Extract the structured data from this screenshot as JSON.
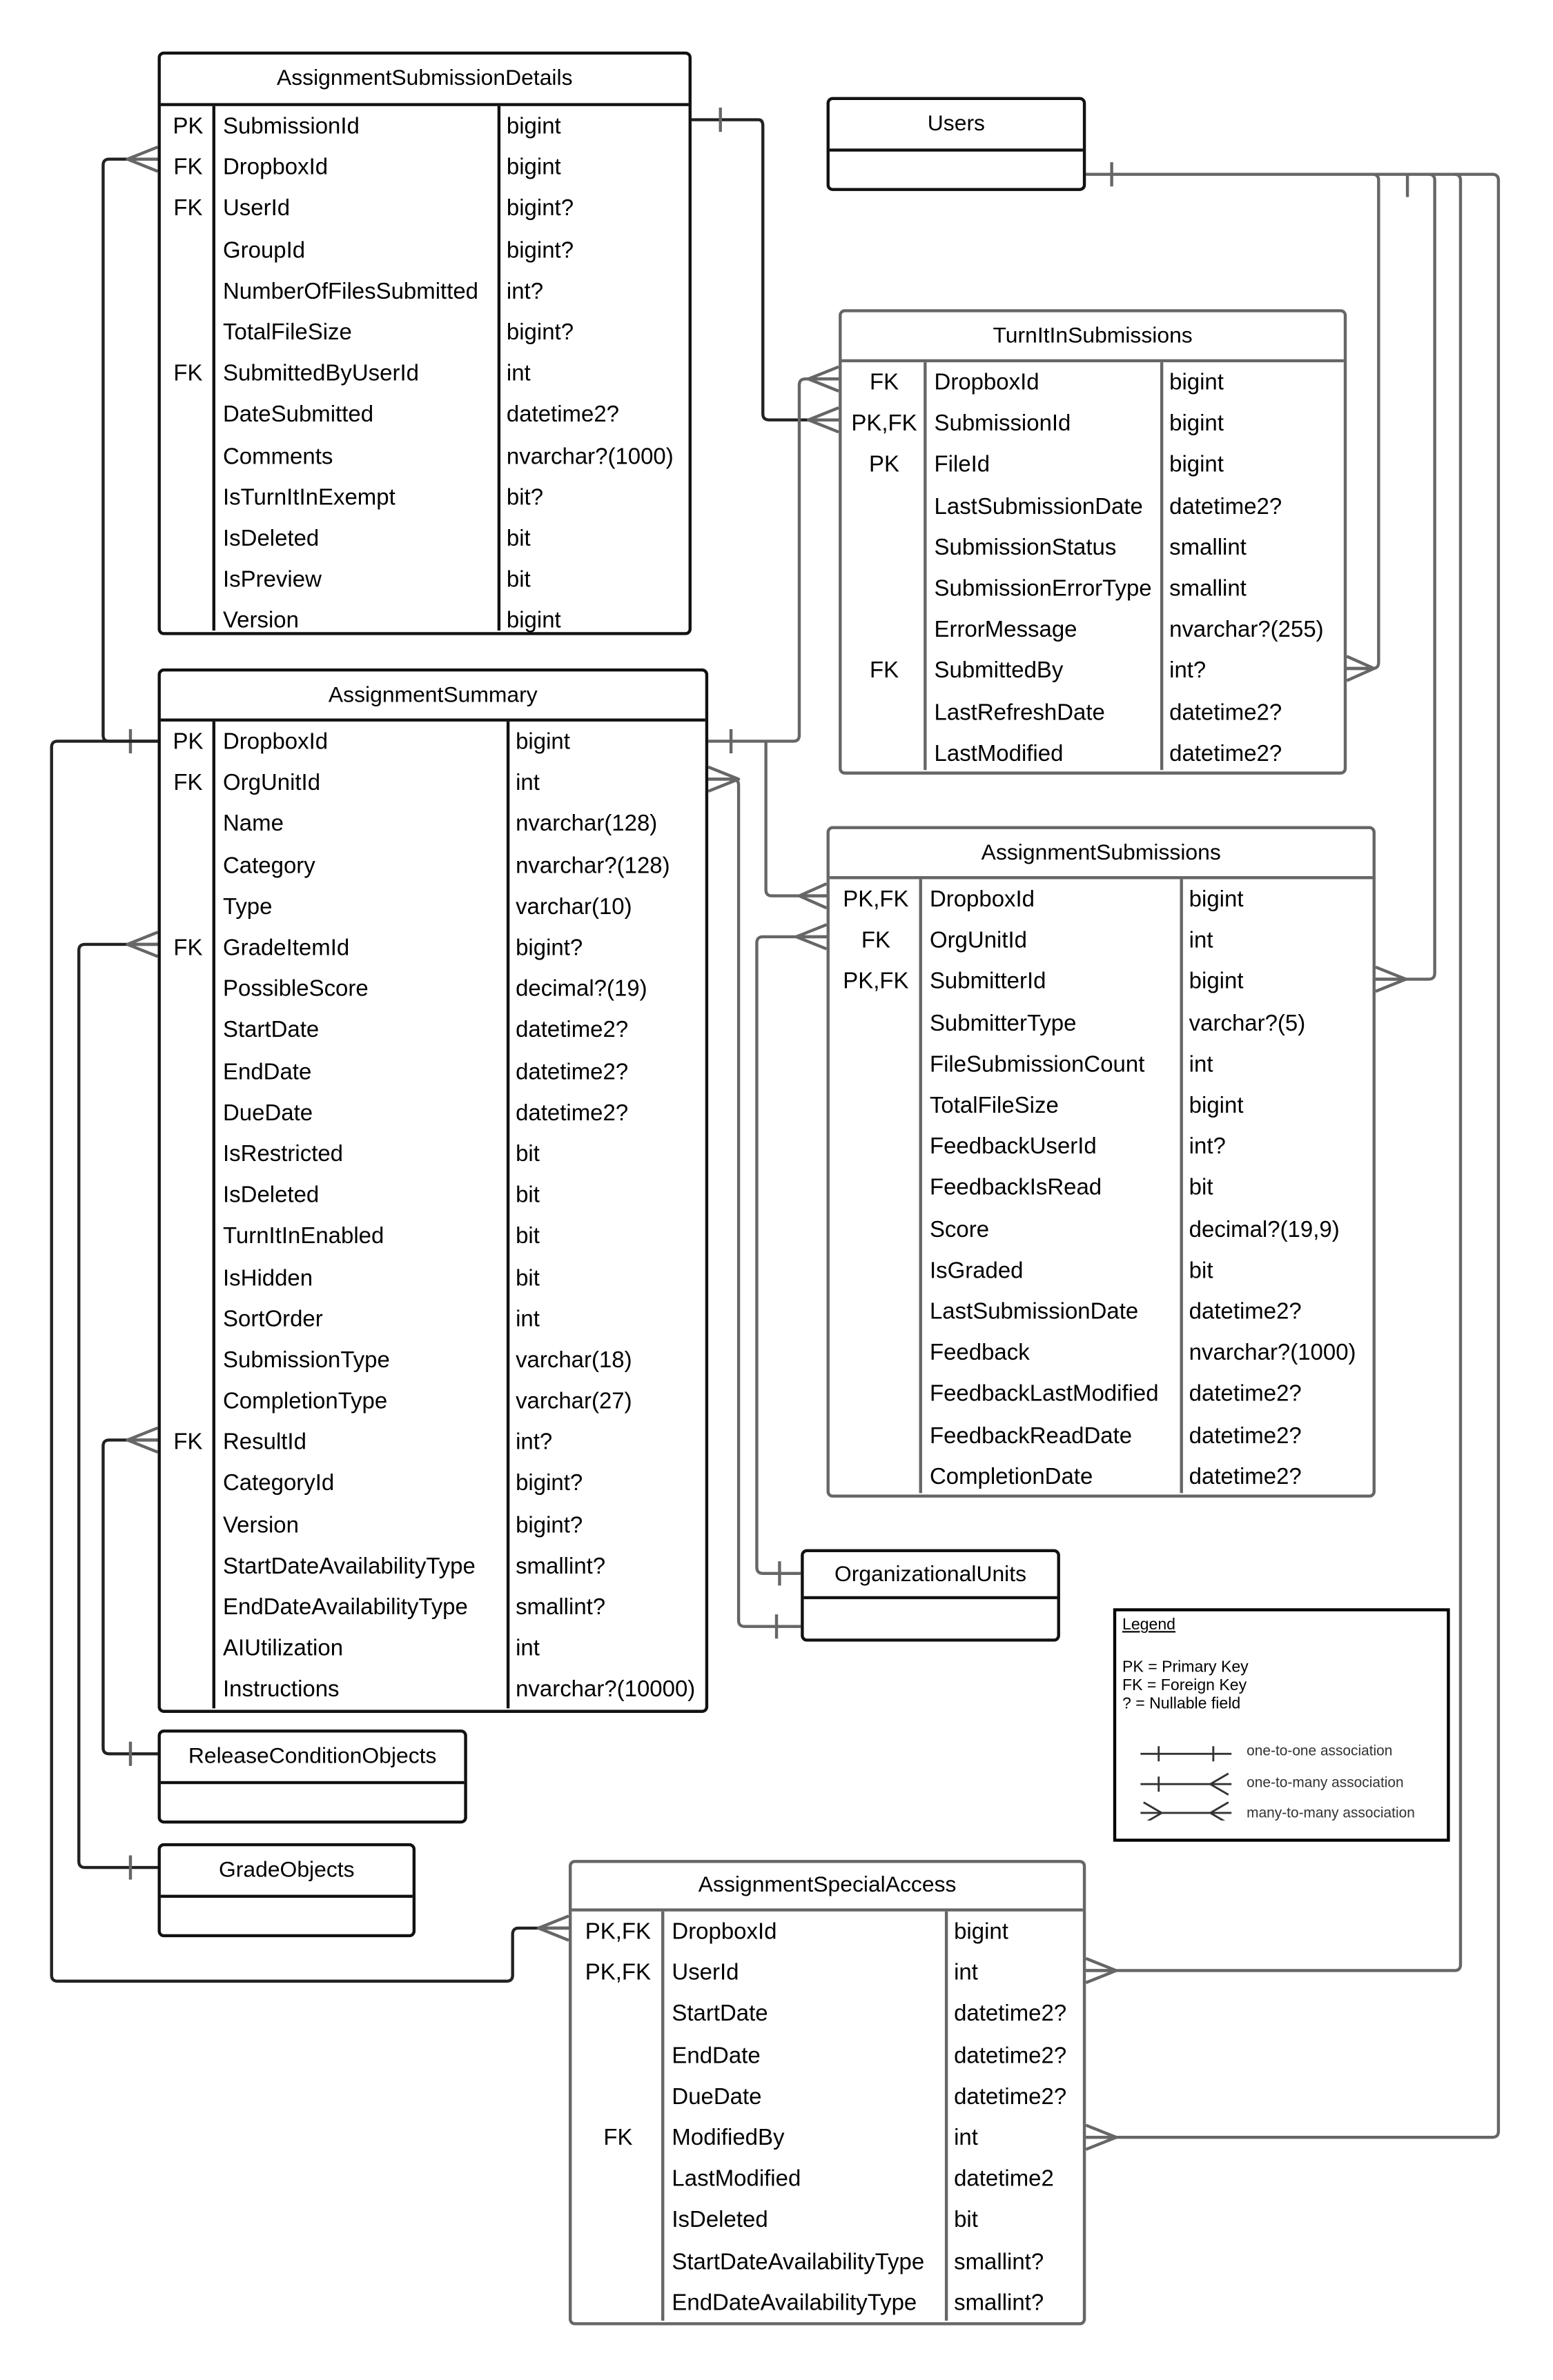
{
  "colors": {
    "line": "#666666",
    "border": "#111111"
  },
  "tables": [
    {
      "id": "assignment-submission-details",
      "title": "AssignmentSubmissionDetails",
      "style": "black",
      "rows": [
        [
          "PK",
          "SubmissionId",
          "bigint"
        ],
        [
          "FK",
          "DropboxId",
          "bigint"
        ],
        [
          "FK",
          "UserId",
          "bigint?"
        ],
        [
          "",
          "GroupId",
          "bigint?"
        ],
        [
          "",
          "NumberOfFilesSubmitted",
          "int?"
        ],
        [
          "",
          "TotalFileSize",
          "bigint?"
        ],
        [
          "FK",
          "SubmittedByUserId",
          "int"
        ],
        [
          "",
          "DateSubmitted",
          "datetime2?"
        ],
        [
          "",
          "Comments",
          "nvarchar?(1000)"
        ],
        [
          "",
          "IsTurnItInExempt",
          "bit?"
        ],
        [
          "",
          "IsDeleted",
          "bit"
        ],
        [
          "",
          "IsPreview",
          "bit"
        ],
        [
          "",
          "Version",
          "bigint"
        ]
      ]
    },
    {
      "id": "users",
      "title": "Users",
      "style": "black",
      "rows": []
    },
    {
      "id": "turnitin-submissions",
      "title": "TurnItInSubmissions",
      "style": "gray",
      "rows": [
        [
          "FK",
          "DropboxId",
          "bigint"
        ],
        [
          "PK,FK",
          "SubmissionId",
          "bigint"
        ],
        [
          "PK",
          "FileId",
          "bigint"
        ],
        [
          "",
          "LastSubmissionDate",
          "datetime2?"
        ],
        [
          "",
          "SubmissionStatus",
          "smallint"
        ],
        [
          "",
          "SubmissionErrorType",
          "smallint"
        ],
        [
          "",
          "ErrorMessage",
          "nvarchar?(255)"
        ],
        [
          "FK",
          "SubmittedBy",
          "int?"
        ],
        [
          "",
          "LastRefreshDate",
          "datetime2?"
        ],
        [
          "",
          "LastModified",
          "datetime2?"
        ]
      ]
    },
    {
      "id": "assignment-summary",
      "title": "AssignmentSummary",
      "style": "black",
      "rows": [
        [
          "PK",
          "DropboxId",
          "bigint"
        ],
        [
          "FK",
          "OrgUnitId",
          "int"
        ],
        [
          "",
          "Name",
          "nvarchar(128)"
        ],
        [
          "",
          "Category",
          "nvarchar?(128)"
        ],
        [
          "",
          "Type",
          "varchar(10)"
        ],
        [
          "FK",
          "GradeItemId",
          "bigint?"
        ],
        [
          "",
          "PossibleScore",
          "decimal?(19)"
        ],
        [
          "",
          "StartDate",
          "datetime2?"
        ],
        [
          "",
          "EndDate",
          "datetime2?"
        ],
        [
          "",
          "DueDate",
          "datetime2?"
        ],
        [
          "",
          "IsRestricted",
          "bit"
        ],
        [
          "",
          "IsDeleted",
          "bit"
        ],
        [
          "",
          "TurnItInEnabled",
          "bit"
        ],
        [
          "",
          "IsHidden",
          "bit"
        ],
        [
          "",
          "SortOrder",
          "int"
        ],
        [
          "",
          "SubmissionType",
          "varchar(18)"
        ],
        [
          "",
          "CompletionType",
          "varchar(27)"
        ],
        [
          "FK",
          "ResultId",
          "int?"
        ],
        [
          "",
          "CategoryId",
          "bigint?"
        ],
        [
          "",
          "Version",
          "bigint?"
        ],
        [
          "",
          "StartDateAvailabilityType",
          "smallint?"
        ],
        [
          "",
          "EndDateAvailabilityType",
          "smallint?"
        ],
        [
          "",
          "AIUtilization",
          "int"
        ],
        [
          "",
          "Instructions",
          "nvarchar?(10000)"
        ]
      ]
    },
    {
      "id": "assignment-submissions",
      "title": "AssignmentSubmissions",
      "style": "gray",
      "rows": [
        [
          "PK,FK",
          "DropboxId",
          "bigint"
        ],
        [
          "FK",
          "OrgUnitId",
          "int"
        ],
        [
          "PK,FK",
          "SubmitterId",
          "bigint"
        ],
        [
          "",
          "SubmitterType",
          "varchar?(5)"
        ],
        [
          "",
          "FileSubmissionCount",
          "int"
        ],
        [
          "",
          "TotalFileSize",
          "bigint"
        ],
        [
          "",
          "FeedbackUserId",
          "int?"
        ],
        [
          "",
          "FeedbackIsRead",
          "bit"
        ],
        [
          "",
          "Score",
          "decimal?(19,9)"
        ],
        [
          "",
          "IsGraded",
          "bit"
        ],
        [
          "",
          "LastSubmissionDate",
          "datetime2?"
        ],
        [
          "",
          "Feedback",
          "nvarchar?(1000)"
        ],
        [
          "",
          "FeedbackLastModified",
          "datetime2?"
        ],
        [
          "",
          "FeedbackReadDate",
          "datetime2?"
        ],
        [
          "",
          "CompletionDate",
          "datetime2?"
        ]
      ]
    },
    {
      "id": "organizational-units",
      "title": "OrganizationalUnits",
      "style": "black",
      "rows": []
    },
    {
      "id": "release-condition-objects",
      "title": "ReleaseConditionObjects",
      "style": "black",
      "rows": []
    },
    {
      "id": "grade-objects",
      "title": "GradeObjects",
      "style": "black",
      "rows": []
    },
    {
      "id": "assignment-special-access",
      "title": "AssignmentSpecialAccess",
      "style": "gray",
      "rows": [
        [
          "PK,FK",
          "DropboxId",
          "bigint"
        ],
        [
          "PK,FK",
          "UserId",
          "int"
        ],
        [
          "",
          "StartDate",
          "datetime2?"
        ],
        [
          "",
          "EndDate",
          "datetime2?"
        ],
        [
          "",
          "DueDate",
          "datetime2?"
        ],
        [
          "FK",
          "ModifiedBy",
          "int"
        ],
        [
          "",
          "LastModified",
          "datetime2"
        ],
        [
          "",
          "IsDeleted",
          "bit"
        ],
        [
          "",
          "StartDateAvailabilityType",
          "smallint?"
        ],
        [
          "",
          "EndDateAvailabilityType",
          "smallint?"
        ]
      ]
    }
  ],
  "legend": {
    "title": "Legend",
    "lines": [
      "PK = Primary Key",
      "FK = Foreign Key",
      "? = Nullable field"
    ],
    "symbols": [
      {
        "label": "one-to-one association",
        "icon": "one-to-one-icon"
      },
      {
        "label": "one-to-many association",
        "icon": "one-to-many-icon"
      },
      {
        "label": "many-to-many association",
        "icon": "many-to-many-icon"
      }
    ]
  }
}
